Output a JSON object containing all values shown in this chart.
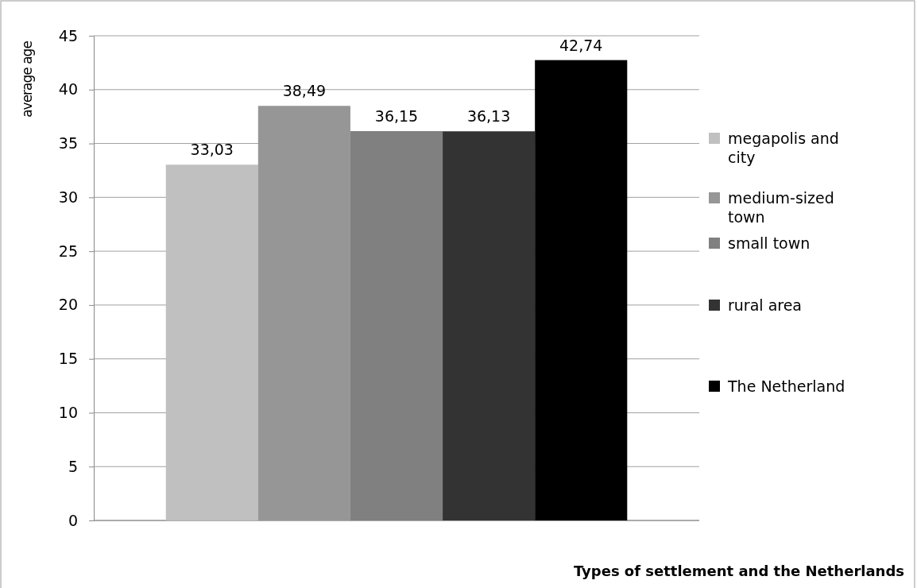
{
  "chart_data": {
    "type": "bar",
    "xlabel": "Types of settlement and the Netherlands",
    "ylabel": "average age",
    "categories": [
      null
    ],
    "series": [
      {
        "name": "megapolis and city",
        "color": "#c0c0c0",
        "values": [
          33.03
        ],
        "value_labels": [
          "33,03"
        ]
      },
      {
        "name": "medium-sized town",
        "color": "#969696",
        "values": [
          38.49
        ],
        "value_labels": [
          "38,49"
        ]
      },
      {
        "name": "small town",
        "color": "#808080",
        "values": [
          36.15
        ],
        "value_labels": [
          "36,15"
        ]
      },
      {
        "name": "rural area",
        "color": "#333333",
        "values": [
          36.13
        ],
        "value_labels": [
          "36,13"
        ]
      },
      {
        "name": "The Netherland",
        "color": "#000000",
        "values": [
          42.74
        ],
        "value_labels": [
          "42,74"
        ]
      }
    ],
    "ylim": [
      0,
      45
    ],
    "yticks": [
      0,
      5,
      10,
      15,
      20,
      25,
      30,
      35,
      40,
      45
    ],
    "grid": "y",
    "legend": "right"
  }
}
